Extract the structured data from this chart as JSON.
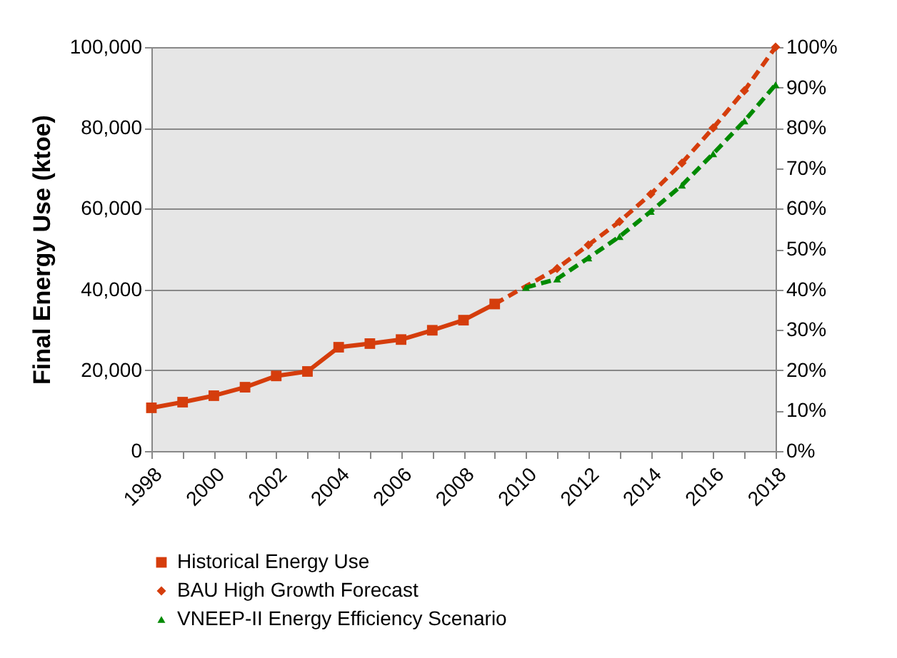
{
  "chart_data": {
    "type": "line",
    "ylabel": "Final Energy Use (ktoe)",
    "categories": [
      "1998",
      null,
      "2000",
      null,
      "2002",
      null,
      "2004",
      null,
      "2006",
      null,
      "2008",
      null,
      "2010",
      null,
      "2012",
      null,
      "2014",
      null,
      "2016",
      null,
      "2018"
    ],
    "series": [
      {
        "name": "Historical Energy Use",
        "color": "#d53d0c",
        "marker": "square",
        "line_style": "solid",
        "values": [
          10700,
          12100,
          13700,
          15800,
          18600,
          19700,
          25700,
          26600,
          27600,
          29900,
          32400,
          36400,
          null,
          null,
          null,
          null,
          null,
          null,
          null,
          null,
          null
        ]
      },
      {
        "name": "BAU High Growth Forecast",
        "color": "#d53d0c",
        "marker": "diamond",
        "line_style": "dashed",
        "values": [
          null,
          null,
          null,
          null,
          null,
          null,
          null,
          null,
          null,
          null,
          null,
          36400,
          null,
          45200,
          51000,
          56800,
          63600,
          71300,
          80000,
          89200,
          100000
        ]
      },
      {
        "name": "VNEEP-II Energy Efficiency Scenario",
        "color": "#008a00",
        "marker": "triangle",
        "line_style": "dashed",
        "values": [
          null,
          null,
          null,
          null,
          null,
          null,
          null,
          null,
          null,
          null,
          null,
          null,
          40500,
          42600,
          47800,
          53100,
          59300,
          65800,
          73600,
          81700,
          90700
        ]
      }
    ],
    "ylim": [
      0,
      100000
    ],
    "yticks": [
      0,
      {
        "value": 20000,
        "label": "20,000"
      },
      {
        "value": 40000,
        "label": "40,000"
      },
      {
        "value": 60000,
        "label": "60,000"
      },
      {
        "value": 80000,
        "label": "80,000"
      },
      {
        "value": 100000,
        "label": "100,000"
      }
    ],
    "y2lim": [
      0,
      100
    ],
    "y2ticks": [
      {
        "value": 0,
        "label": "0%"
      },
      {
        "value": 10,
        "label": "10%"
      },
      {
        "value": 20,
        "label": "20%"
      },
      {
        "value": 30,
        "label": "30%"
      },
      {
        "value": 40,
        "label": "40%"
      },
      {
        "value": 50,
        "label": "50%"
      },
      {
        "value": 60,
        "label": "60%"
      },
      {
        "value": 70,
        "label": "70%"
      },
      {
        "value": 80,
        "label": "80%"
      },
      {
        "value": 90,
        "label": "90%"
      },
      {
        "value": 100,
        "label": "100%"
      }
    ],
    "grid": "y",
    "legend": "bottom"
  }
}
